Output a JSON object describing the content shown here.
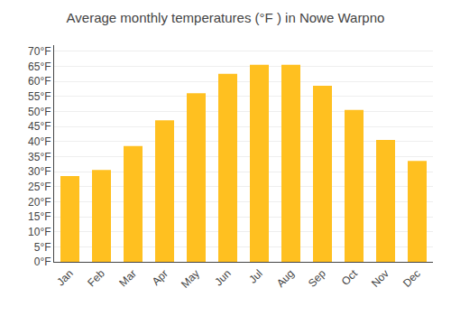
{
  "chart_data": {
    "type": "bar",
    "title": "Average monthly temperatures (°F ) in Nowe Warpno",
    "categories": [
      "Jan",
      "Feb",
      "Mar",
      "Apr",
      "May",
      "Jun",
      "Jul",
      "Aug",
      "Sep",
      "Oct",
      "Nov",
      "Dec"
    ],
    "values": [
      28.5,
      30.5,
      38.5,
      47,
      56,
      62.5,
      65.5,
      65.5,
      58.5,
      50.5,
      40.5,
      33.5
    ],
    "color": "#FFC020",
    "ylim": [
      0,
      72
    ],
    "yticks": [
      {
        "value": 0,
        "label": "0°F"
      },
      {
        "value": 5,
        "label": "5°F"
      },
      {
        "value": 10,
        "label": "10°F"
      },
      {
        "value": 15,
        "label": "15°F"
      },
      {
        "value": 20,
        "label": "20°F"
      },
      {
        "value": 25,
        "label": "25°F"
      },
      {
        "value": 30,
        "label": "30°F"
      },
      {
        "value": 35,
        "label": "35°F"
      },
      {
        "value": 40,
        "label": "40°F"
      },
      {
        "value": 45,
        "label": "45°F"
      },
      {
        "value": 50,
        "label": "50°F"
      },
      {
        "value": 55,
        "label": "55°F"
      },
      {
        "value": 60,
        "label": "60°F"
      },
      {
        "value": 65,
        "label": "65°F"
      },
      {
        "value": 70,
        "label": "70°F"
      }
    ],
    "grid": true
  }
}
